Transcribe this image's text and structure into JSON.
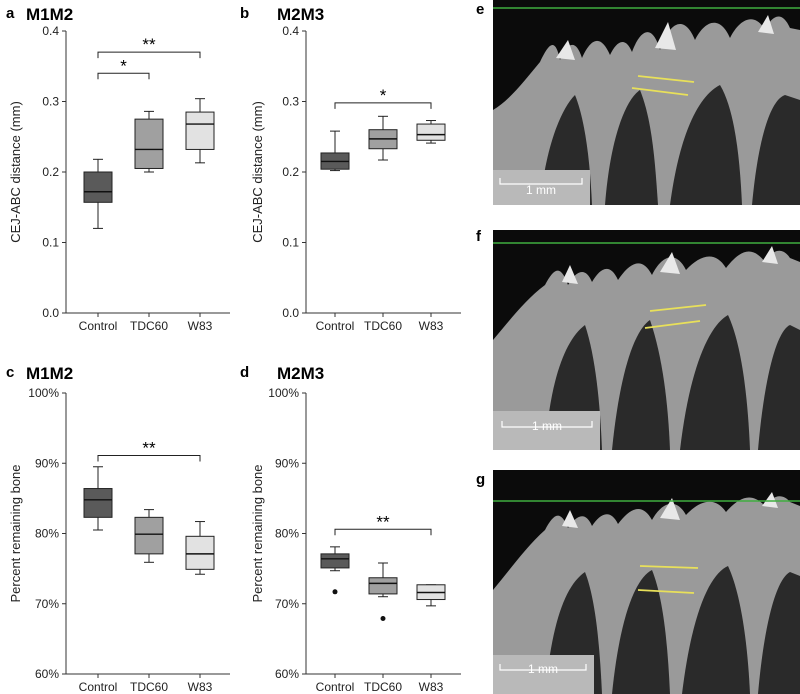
{
  "chart_data": [
    {
      "panel": "a",
      "title": "M1M2",
      "type": "box",
      "ylabel": "CEJ-ABC distance (mm)",
      "ylim": [
        0,
        0.4
      ],
      "yticks": [
        "0.0",
        "0.1",
        "0.2",
        "0.3",
        "0.4"
      ],
      "yticks_values": [
        0,
        0.1,
        0.2,
        0.3,
        0.4
      ],
      "categories": [
        "Control",
        "TDC60",
        "W83"
      ],
      "colors": [
        "#5a5a5a",
        "#a0a0a0",
        "#e2e2e2"
      ],
      "boxes": [
        {
          "whisker_low": 0.12,
          "q1": 0.157,
          "median": 0.172,
          "q3": 0.2,
          "whisker_high": 0.218,
          "outliers": []
        },
        {
          "whisker_low": 0.2,
          "q1": 0.205,
          "median": 0.232,
          "q3": 0.275,
          "whisker_high": 0.286,
          "outliers": []
        },
        {
          "whisker_low": 0.213,
          "q1": 0.232,
          "median": 0.268,
          "q3": 0.285,
          "whisker_high": 0.304,
          "outliers": []
        }
      ],
      "significance": [
        {
          "from": 0,
          "to": 1,
          "label": "*",
          "level": 0.34
        },
        {
          "from": 0,
          "to": 2,
          "label": "**",
          "level": 0.37
        }
      ]
    },
    {
      "panel": "b",
      "title": "M2M3",
      "type": "box",
      "ylabel": "CEJ-ABC distance (mm)",
      "ylim": [
        0,
        0.4
      ],
      "yticks": [
        "0.0",
        "0.1",
        "0.2",
        "0.3",
        "0.4"
      ],
      "yticks_values": [
        0,
        0.1,
        0.2,
        0.3,
        0.4
      ],
      "categories": [
        "Control",
        "TDC60",
        "W83"
      ],
      "colors": [
        "#5a5a5a",
        "#a0a0a0",
        "#e2e2e2"
      ],
      "boxes": [
        {
          "whisker_low": 0.202,
          "q1": 0.204,
          "median": 0.215,
          "q3": 0.227,
          "whisker_high": 0.258,
          "outliers": []
        },
        {
          "whisker_low": 0.217,
          "q1": 0.233,
          "median": 0.247,
          "q3": 0.26,
          "whisker_high": 0.279,
          "outliers": []
        },
        {
          "whisker_low": 0.241,
          "q1": 0.245,
          "median": 0.253,
          "q3": 0.268,
          "whisker_high": 0.273,
          "outliers": []
        }
      ],
      "significance": [
        {
          "from": 0,
          "to": 2,
          "label": "*",
          "level": 0.298
        }
      ]
    },
    {
      "panel": "c",
      "title": "M1M2",
      "type": "box",
      "ylabel": "Percent remaining bone",
      "ylim": [
        60,
        100
      ],
      "yticks": [
        "60%",
        "70%",
        "80%",
        "90%",
        "100%"
      ],
      "yticks_values": [
        60,
        70,
        80,
        90,
        100
      ],
      "categories": [
        "Control",
        "TDC60",
        "W83"
      ],
      "colors": [
        "#5a5a5a",
        "#a0a0a0",
        "#e2e2e2"
      ],
      "boxes": [
        {
          "whisker_low": 80.5,
          "q1": 82.3,
          "median": 84.8,
          "q3": 86.4,
          "whisker_high": 89.5,
          "outliers": []
        },
        {
          "whisker_low": 75.9,
          "q1": 77.1,
          "median": 79.9,
          "q3": 82.3,
          "whisker_high": 83.4,
          "outliers": []
        },
        {
          "whisker_low": 74.2,
          "q1": 74.9,
          "median": 77.1,
          "q3": 79.6,
          "whisker_high": 81.7,
          "outliers": []
        }
      ],
      "significance": [
        {
          "from": 0,
          "to": 2,
          "label": "**",
          "level": 91.1
        }
      ]
    },
    {
      "panel": "d",
      "title": "M2M3",
      "type": "box",
      "ylabel": "Percent remaining bone",
      "ylim": [
        60,
        100
      ],
      "yticks": [
        "60%",
        "70%",
        "80%",
        "90%",
        "100%"
      ],
      "yticks_values": [
        60,
        70,
        80,
        90,
        100
      ],
      "categories": [
        "Control",
        "TDC60",
        "W83"
      ],
      "colors": [
        "#5a5a5a",
        "#a0a0a0",
        "#e2e2e2"
      ],
      "boxes": [
        {
          "whisker_low": 74.7,
          "q1": 75.1,
          "median": 76.4,
          "q3": 77.1,
          "whisker_high": 78.1,
          "outliers": [
            71.7
          ]
        },
        {
          "whisker_low": 71.0,
          "q1": 71.4,
          "median": 72.9,
          "q3": 73.7,
          "whisker_high": 75.8,
          "outliers": [
            67.9
          ]
        },
        {
          "whisker_low": 69.7,
          "q1": 70.6,
          "median": 71.6,
          "q3": 72.7,
          "whisker_high": 72.7,
          "outliers": []
        }
      ],
      "significance": [
        {
          "from": 0,
          "to": 2,
          "label": "**",
          "level": 80.6
        }
      ]
    }
  ],
  "images": [
    {
      "panel": "e",
      "scale_label": "1 mm"
    },
    {
      "panel": "f",
      "scale_label": "1 mm"
    },
    {
      "panel": "g",
      "scale_label": "1 mm"
    }
  ],
  "colors": {
    "reference_line": "#3fae3f",
    "measure_line": "#e8e05a",
    "scale_box": "#b9b9b9"
  }
}
